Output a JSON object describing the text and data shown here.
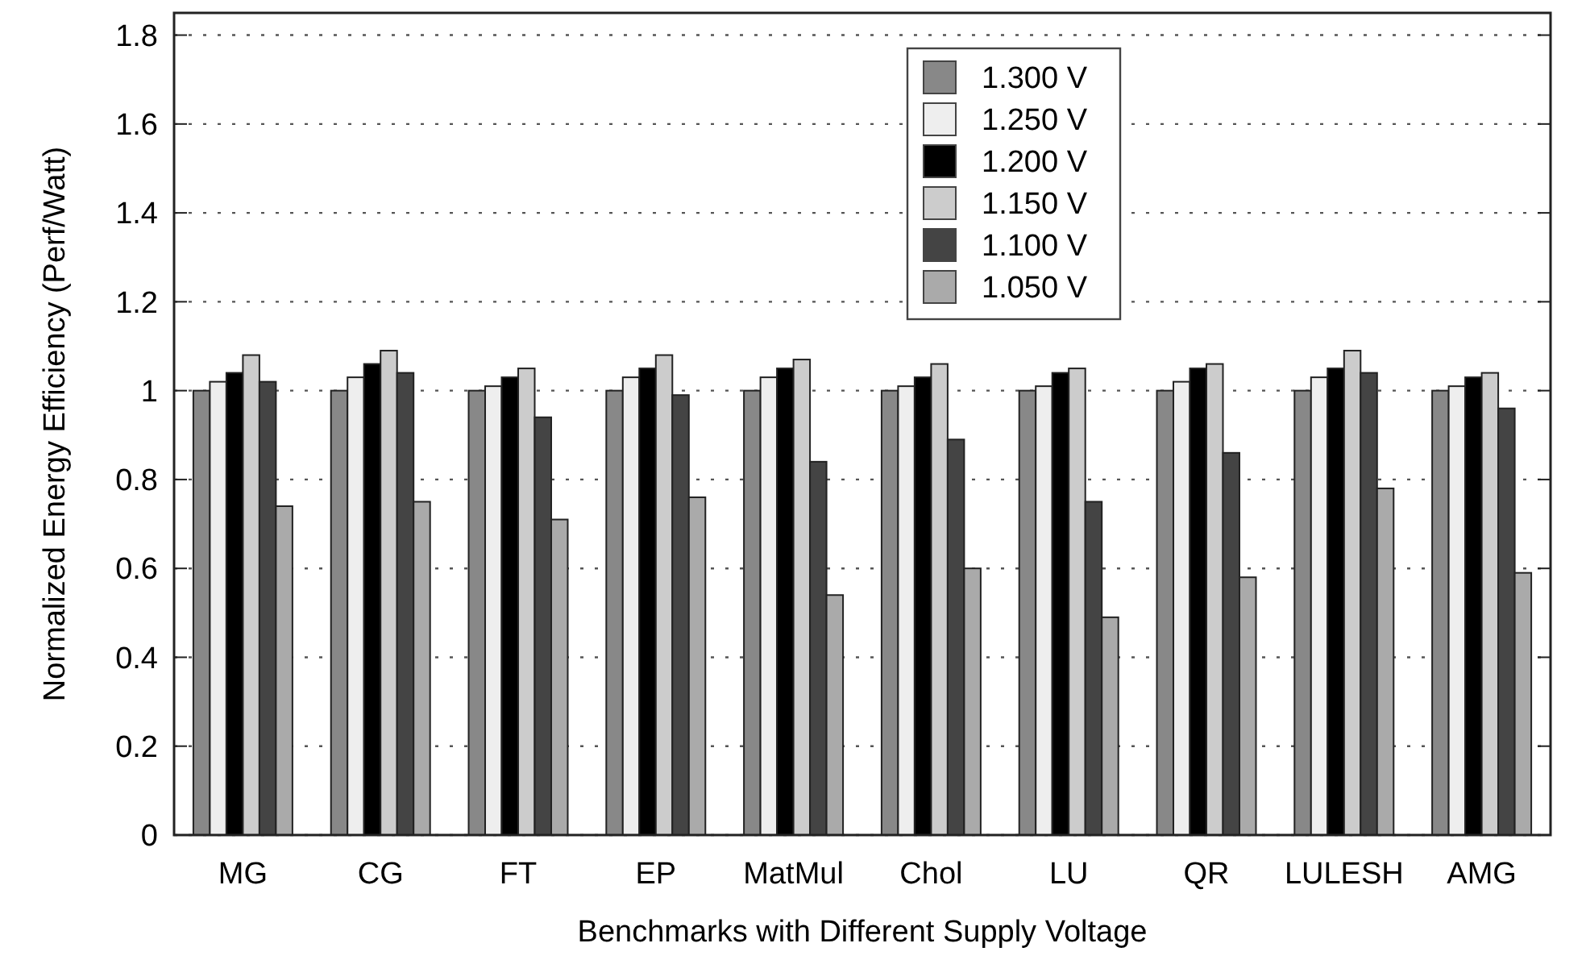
{
  "chart_data": {
    "type": "bar",
    "xlabel": "Benchmarks with Different Supply Voltage",
    "ylabel": "Normalized Energy Efficiency (Perf/Watt)",
    "categories": [
      "MG",
      "CG",
      "FT",
      "EP",
      "MatMul",
      "Chol",
      "LU",
      "QR",
      "LULESH",
      "AMG"
    ],
    "series": [
      {
        "name": "1.300 V",
        "color": "#888888",
        "values": [
          1,
          1,
          1,
          1,
          1,
          1,
          1,
          1,
          1,
          1
        ]
      },
      {
        "name": "1.250 V",
        "color": "#eeeeee",
        "values": [
          1.02,
          1.03,
          1.01,
          1.03,
          1.03,
          1.01,
          1.01,
          1.02,
          1.03,
          1.01
        ]
      },
      {
        "name": "1.200 V",
        "color": "#000000",
        "values": [
          1.04,
          1.06,
          1.03,
          1.05,
          1.05,
          1.03,
          1.04,
          1.05,
          1.05,
          1.03
        ]
      },
      {
        "name": "1.150 V",
        "color": "#cccccc",
        "values": [
          1.08,
          1.09,
          1.05,
          1.08,
          1.07,
          1.06,
          1.05,
          1.06,
          1.09,
          1.04
        ]
      },
      {
        "name": "1.100 V",
        "color": "#444444",
        "values": [
          1.02,
          1.04,
          0.94,
          0.99,
          0.84,
          0.89,
          0.75,
          0.86,
          1.04,
          0.96
        ]
      },
      {
        "name": "1.050 V",
        "color": "#aaaaaa",
        "values": [
          0.74,
          0.75,
          0.71,
          0.76,
          0.54,
          0.6,
          0.49,
          0.58,
          0.78,
          0.59
        ]
      }
    ],
    "ylim": [
      0,
      1.85
    ],
    "yticks": [
      0,
      0.2,
      0.4,
      0.6,
      0.8,
      1,
      1.2,
      1.4,
      1.6,
      1.8
    ],
    "grid": "y",
    "legend": "top"
  }
}
